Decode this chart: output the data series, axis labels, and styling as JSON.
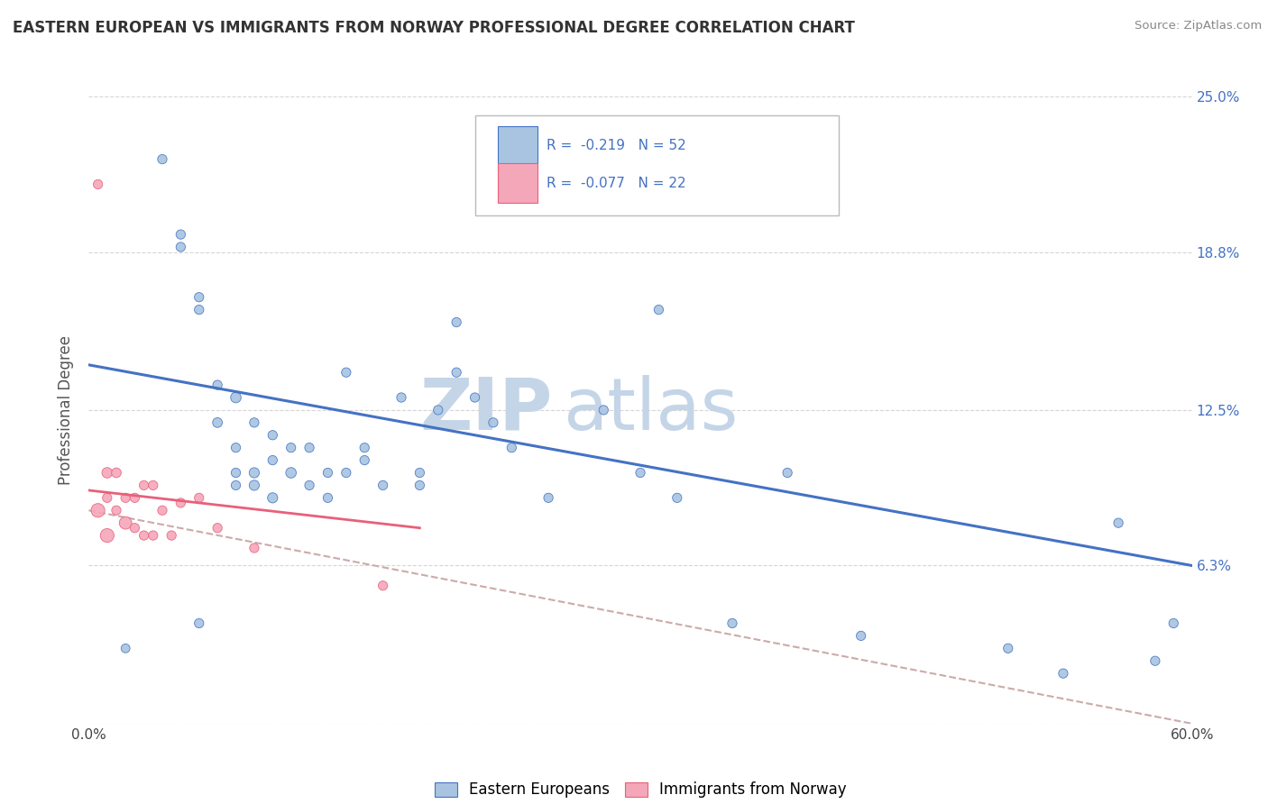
{
  "title": "EASTERN EUROPEAN VS IMMIGRANTS FROM NORWAY PROFESSIONAL DEGREE CORRELATION CHART",
  "source": "Source: ZipAtlas.com",
  "ylabel": "Professional Degree",
  "xmin": 0.0,
  "xmax": 0.6,
  "ymin": 0.0,
  "ymax": 0.25,
  "yticks": [
    0.0,
    0.063,
    0.125,
    0.188,
    0.25
  ],
  "ytick_labels_right": [
    "",
    "6.3%",
    "12.5%",
    "18.8%",
    "25.0%"
  ],
  "xtick_positions": [
    0.0,
    0.6
  ],
  "xtick_labels": [
    "0.0%",
    "60.0%"
  ],
  "legend_label1": "Eastern Europeans",
  "legend_label2": "Immigrants from Norway",
  "legend_r1": "R =  -0.219",
  "legend_n1": "N = 52",
  "legend_r2": "R =  -0.077",
  "legend_n2": "N = 22",
  "color_blue": "#a8c4e0",
  "color_pink": "#f4a7b9",
  "trendline_blue": "#4472c4",
  "trendline_pink": "#e8607a",
  "trendline_dashed_color": "#ccaaaa",
  "watermark_zip": "ZIP",
  "watermark_atlas": "atlas",
  "blue_scatter_x": [
    0.02,
    0.05,
    0.06,
    0.07,
    0.08,
    0.08,
    0.08,
    0.09,
    0.09,
    0.04,
    0.05,
    0.06,
    0.07,
    0.08,
    0.09,
    0.1,
    0.1,
    0.11,
    0.11,
    0.12,
    0.13,
    0.13,
    0.14,
    0.15,
    0.16,
    0.17,
    0.18,
    0.19,
    0.2,
    0.21,
    0.22,
    0.23,
    0.25,
    0.28,
    0.3,
    0.32,
    0.1,
    0.12,
    0.14,
    0.15,
    0.18,
    0.2,
    0.35,
    0.38,
    0.42,
    0.5,
    0.53,
    0.56,
    0.58,
    0.59,
    0.31,
    0.06
  ],
  "blue_scatter_y": [
    0.03,
    0.195,
    0.17,
    0.135,
    0.13,
    0.11,
    0.095,
    0.12,
    0.1,
    0.225,
    0.19,
    0.165,
    0.12,
    0.1,
    0.095,
    0.115,
    0.09,
    0.11,
    0.1,
    0.11,
    0.1,
    0.09,
    0.14,
    0.11,
    0.095,
    0.13,
    0.1,
    0.125,
    0.16,
    0.13,
    0.12,
    0.11,
    0.09,
    0.125,
    0.1,
    0.09,
    0.105,
    0.095,
    0.1,
    0.105,
    0.095,
    0.14,
    0.04,
    0.1,
    0.035,
    0.03,
    0.02,
    0.08,
    0.025,
    0.04,
    0.165,
    0.04
  ],
  "blue_scatter_size": [
    50,
    55,
    55,
    55,
    70,
    55,
    55,
    55,
    65,
    55,
    55,
    55,
    60,
    55,
    65,
    55,
    65,
    55,
    70,
    55,
    55,
    55,
    55,
    55,
    55,
    55,
    55,
    55,
    55,
    55,
    55,
    55,
    55,
    55,
    55,
    55,
    55,
    55,
    55,
    55,
    55,
    55,
    55,
    55,
    55,
    55,
    55,
    55,
    55,
    55,
    55,
    55
  ],
  "pink_scatter_x": [
    0.005,
    0.005,
    0.01,
    0.01,
    0.01,
    0.015,
    0.015,
    0.02,
    0.02,
    0.025,
    0.025,
    0.03,
    0.03,
    0.035,
    0.035,
    0.04,
    0.045,
    0.05,
    0.06,
    0.07,
    0.09,
    0.16
  ],
  "pink_scatter_y": [
    0.215,
    0.085,
    0.1,
    0.09,
    0.075,
    0.1,
    0.085,
    0.09,
    0.08,
    0.09,
    0.078,
    0.095,
    0.075,
    0.095,
    0.075,
    0.085,
    0.075,
    0.088,
    0.09,
    0.078,
    0.07,
    0.055
  ],
  "pink_scatter_size": [
    55,
    120,
    70,
    55,
    120,
    60,
    55,
    55,
    100,
    55,
    55,
    55,
    55,
    55,
    55,
    55,
    55,
    55,
    55,
    55,
    55,
    55
  ],
  "blue_trend_x": [
    0.0,
    0.6
  ],
  "blue_trend_y": [
    0.143,
    0.063
  ],
  "pink_trend_x": [
    0.0,
    0.18
  ],
  "pink_trend_y": [
    0.093,
    0.078
  ],
  "dashed_trend_x": [
    0.0,
    0.6
  ],
  "dashed_trend_y": [
    0.085,
    0.0
  ]
}
